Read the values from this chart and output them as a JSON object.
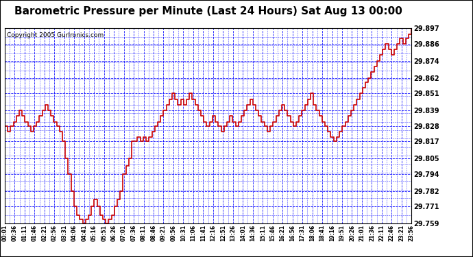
{
  "title": "Barometric Pressure per Minute (Last 24 Hours) Sat Aug 13 00:00",
  "copyright": "Copyright 2005 Gurlronics.com",
  "ylabel_values": [
    29.897,
    29.886,
    29.874,
    29.862,
    29.851,
    29.839,
    29.828,
    29.817,
    29.805,
    29.794,
    29.782,
    29.771,
    29.759
  ],
  "ymin": 29.759,
  "ymax": 29.897,
  "line_color": "#cc0000",
  "bg_color": "#ffffff",
  "plot_bg_color": "#ffffff",
  "grid_color": "#0000ff",
  "title_fontsize": 11,
  "copyright_fontsize": 6.5,
  "x_labels": [
    "00:01",
    "00:36",
    "01:11",
    "01:46",
    "02:21",
    "02:56",
    "03:31",
    "04:06",
    "04:41",
    "05:16",
    "05:51",
    "06:26",
    "07:01",
    "07:36",
    "08:11",
    "08:46",
    "09:21",
    "09:56",
    "10:31",
    "11:06",
    "11:41",
    "12:16",
    "12:51",
    "13:26",
    "14:01",
    "14:36",
    "15:11",
    "15:46",
    "16:21",
    "16:56",
    "17:31",
    "18:06",
    "18:41",
    "19:16",
    "19:51",
    "20:26",
    "21:01",
    "21:36",
    "22:11",
    "22:46",
    "23:21",
    "23:56"
  ],
  "pressure_data": [
    29.828,
    29.824,
    29.828,
    29.831,
    29.835,
    29.839,
    29.835,
    29.831,
    29.828,
    29.824,
    29.828,
    29.831,
    29.835,
    29.839,
    29.843,
    29.839,
    29.835,
    29.831,
    29.828,
    29.824,
    29.817,
    29.805,
    29.794,
    29.782,
    29.771,
    29.765,
    29.762,
    29.759,
    29.762,
    29.765,
    29.771,
    29.776,
    29.771,
    29.765,
    29.762,
    29.759,
    29.762,
    29.765,
    29.771,
    29.776,
    29.782,
    29.794,
    29.8,
    29.805,
    29.817,
    29.817,
    29.82,
    29.817,
    29.82,
    29.817,
    29.82,
    29.824,
    29.828,
    29.831,
    29.835,
    29.839,
    29.843,
    29.847,
    29.851,
    29.847,
    29.843,
    29.847,
    29.843,
    29.847,
    29.851,
    29.847,
    29.843,
    29.839,
    29.835,
    29.831,
    29.828,
    29.831,
    29.835,
    29.831,
    29.828,
    29.824,
    29.828,
    29.831,
    29.835,
    29.831,
    29.828,
    29.831,
    29.835,
    29.839,
    29.843,
    29.847,
    29.843,
    29.839,
    29.835,
    29.831,
    29.828,
    29.824,
    29.828,
    29.831,
    29.835,
    29.839,
    29.843,
    29.839,
    29.835,
    29.831,
    29.828,
    29.831,
    29.835,
    29.839,
    29.843,
    29.847,
    29.851,
    29.843,
    29.839,
    29.835,
    29.831,
    29.828,
    29.824,
    29.82,
    29.817,
    29.82,
    29.824,
    29.828,
    29.831,
    29.835,
    29.839,
    29.843,
    29.847,
    29.851,
    29.855,
    29.859,
    29.862,
    29.866,
    29.87,
    29.874,
    29.878,
    29.882,
    29.886,
    29.882,
    29.878,
    29.882,
    29.886,
    29.89,
    29.886,
    29.89,
    29.893,
    29.897
  ]
}
